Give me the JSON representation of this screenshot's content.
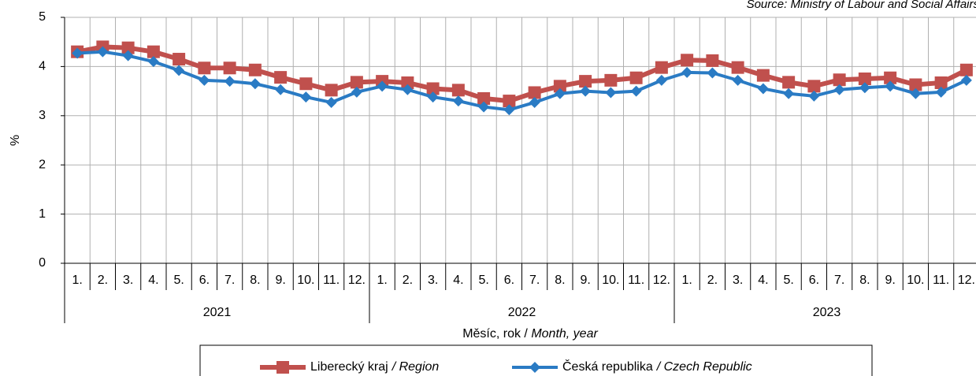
{
  "chart_data": {
    "type": "line",
    "source": "Source: Ministry of Labour and Social Affairs",
    "ylabel": "%",
    "xlabel": "Měsíc, rok / ",
    "xlabel_en": "Month, year",
    "categories": [
      "1.",
      "2.",
      "3.",
      "4.",
      "5.",
      "6.",
      "7.",
      "8.",
      "9.",
      "10.",
      "11.",
      "12.",
      "1.",
      "2.",
      "3.",
      "4.",
      "5.",
      "6.",
      "7.",
      "8.",
      "9.",
      "10.",
      "11.",
      "12.",
      "1.",
      "2.",
      "3.",
      "4.",
      "5.",
      "6.",
      "7.",
      "8.",
      "9.",
      "10.",
      "11.",
      "12."
    ],
    "groups": [
      {
        "label": "2021",
        "size": 12
      },
      {
        "label": "2022",
        "size": 12
      },
      {
        "label": "2023",
        "size": 12
      }
    ],
    "ylim": [
      0,
      5
    ],
    "yticks": [
      0,
      1,
      2,
      3,
      4,
      5
    ],
    "grid": true,
    "series": [
      {
        "name": "Liberecký kraj",
        "name_en": "/ Region",
        "color": "#c0504d",
        "marker": "square",
        "values": [
          4.3,
          4.4,
          4.38,
          4.3,
          4.15,
          3.97,
          3.97,
          3.93,
          3.78,
          3.65,
          3.52,
          3.68,
          3.7,
          3.67,
          3.55,
          3.52,
          3.35,
          3.3,
          3.47,
          3.6,
          3.7,
          3.72,
          3.77,
          3.98,
          4.13,
          4.12,
          3.98,
          3.82,
          3.68,
          3.6,
          3.73,
          3.75,
          3.77,
          3.63,
          3.67,
          3.93
        ]
      },
      {
        "name": "Česká republika",
        "name_en": "/ Czech Republic",
        "color": "#2a7bc4",
        "marker": "diamond",
        "values": [
          4.27,
          4.3,
          4.22,
          4.1,
          3.92,
          3.72,
          3.7,
          3.65,
          3.53,
          3.38,
          3.27,
          3.48,
          3.6,
          3.53,
          3.38,
          3.3,
          3.18,
          3.12,
          3.27,
          3.45,
          3.5,
          3.47,
          3.5,
          3.72,
          3.88,
          3.87,
          3.72,
          3.55,
          3.45,
          3.4,
          3.53,
          3.57,
          3.6,
          3.45,
          3.48,
          3.72
        ]
      }
    ]
  }
}
